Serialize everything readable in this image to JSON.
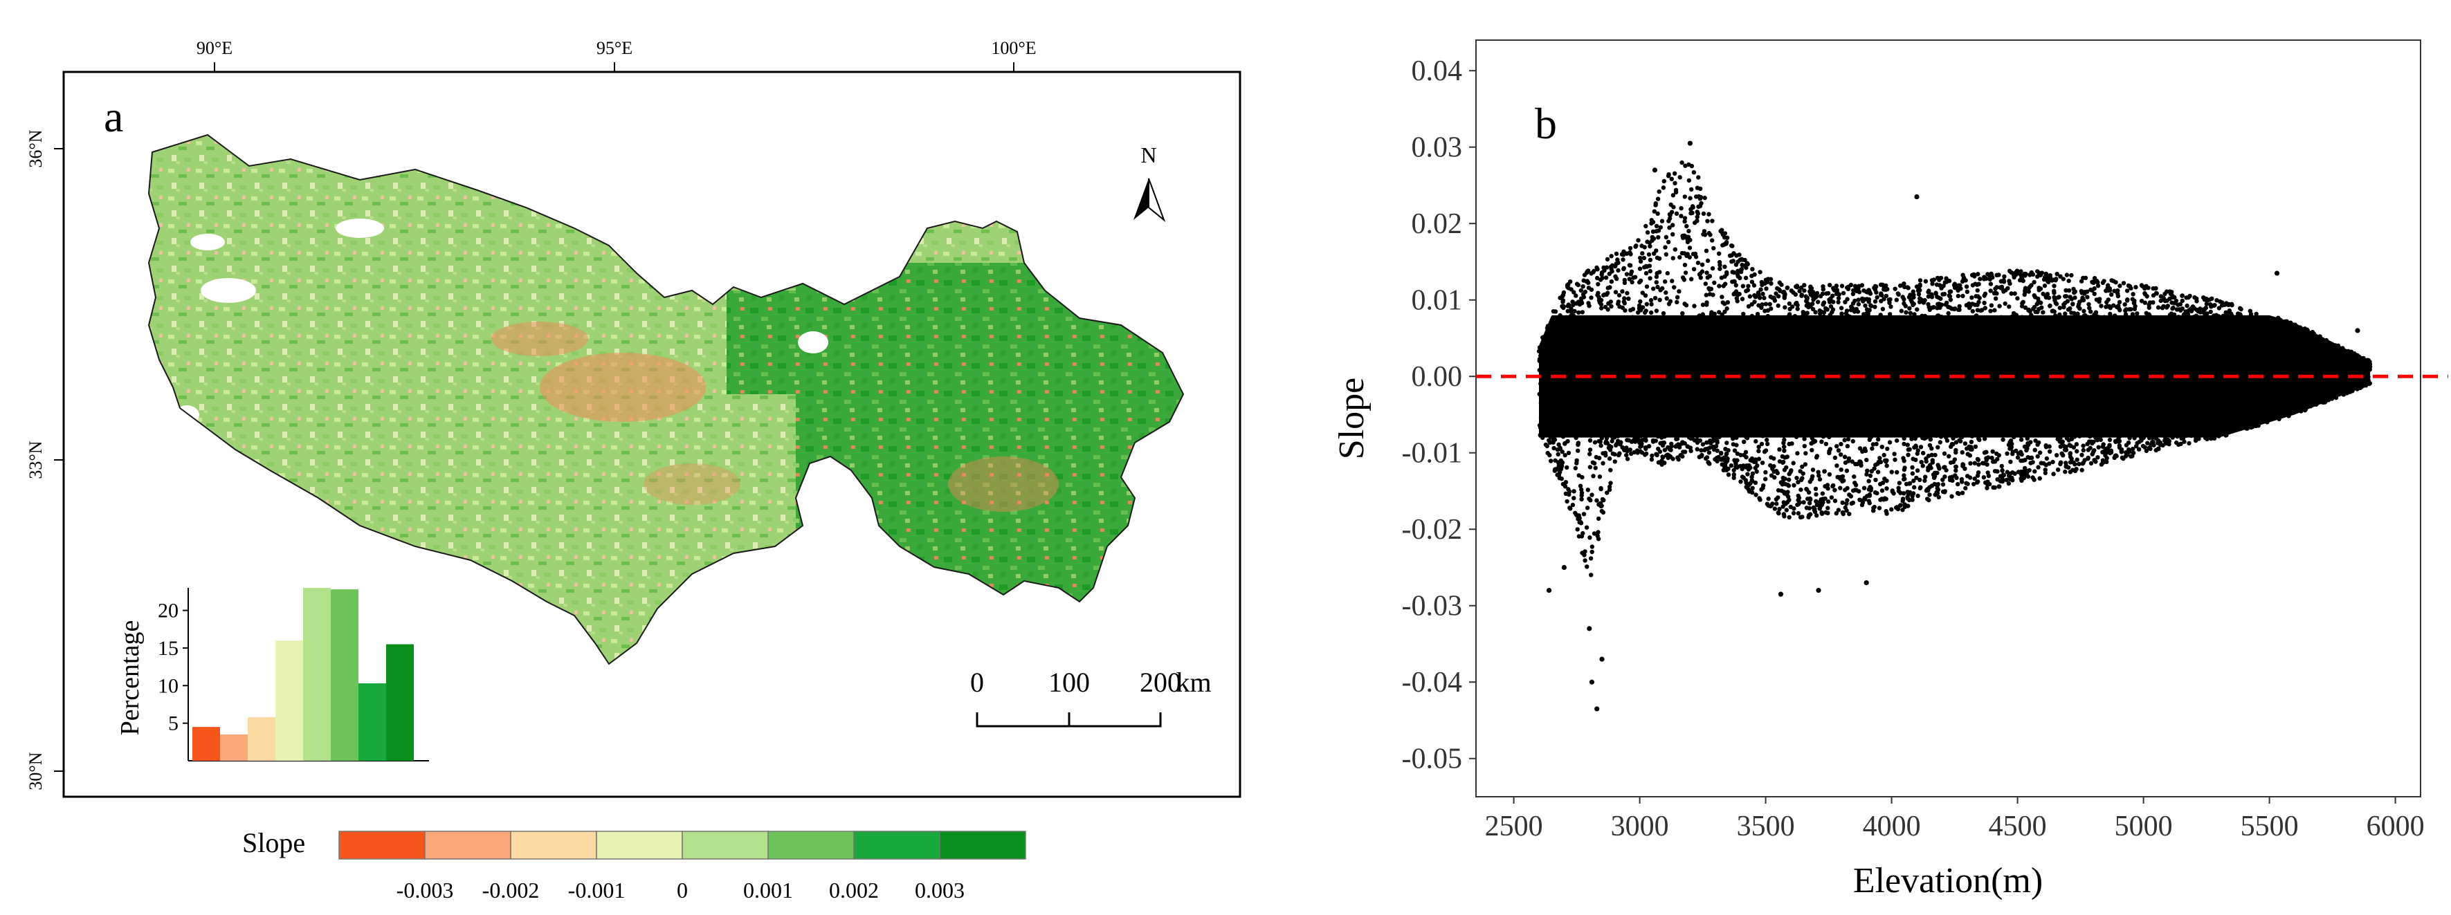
{
  "panel_a": {
    "letter": "a",
    "lon_labels": [
      "90°E",
      "95°E",
      "100°E"
    ],
    "lat_labels": [
      "36°N",
      "33°N",
      "30°N"
    ],
    "north_label": "N",
    "scale_labels": [
      "0",
      "100",
      "200"
    ],
    "scale_unit": "km",
    "inset_ylabel": "Percentage",
    "inset_yticks": [
      "5",
      "10",
      "15",
      "20"
    ],
    "legend_title": "Slope",
    "legend_ticks": [
      "-0.003",
      "-0.002",
      "-0.001",
      "0",
      "0.001",
      "0.002",
      "0.003"
    ],
    "legend_colors": [
      "#f4561b",
      "#f9a87a",
      "#fbd9a0",
      "#e6f3b3",
      "#b3e08a",
      "#6dc45a",
      "#19a83c",
      "#0a8f1c"
    ]
  },
  "panel_b": {
    "letter": "b",
    "xlabel": "Elevation(m)",
    "ylabel": "Slope",
    "xticks": [
      "2500",
      "3000",
      "3500",
      "4000",
      "4500",
      "5000",
      "5500",
      "6000"
    ],
    "yticks": [
      "0.04",
      "0.03",
      "0.02",
      "0.01",
      "0.00",
      "-0.01",
      "-0.02",
      "-0.03",
      "-0.04",
      "-0.05"
    ]
  },
  "chart_data": [
    {
      "type": "bar",
      "panel": "a-inset",
      "ylabel": "Percentage",
      "ylim": [
        0,
        23
      ],
      "colors": [
        "#f4561b",
        "#f9a87a",
        "#fbd9a0",
        "#e6f3b3",
        "#b3e08a",
        "#6dc45a",
        "#19a83c",
        "#0a8f1c"
      ],
      "values": [
        4.5,
        3.5,
        5.8,
        16,
        23,
        22.8,
        10.3,
        15.5
      ]
    },
    {
      "type": "scatter",
      "panel": "b",
      "xlabel": "Elevation(m)",
      "ylabel": "Slope",
      "xlim": [
        2350,
        6100
      ],
      "ylim": [
        -0.055,
        0.044
      ],
      "reference_line": {
        "y": 0.0,
        "style": "dashed",
        "color": "#ff0000"
      },
      "envelope": [
        {
          "x": 2600,
          "upper": 0.004,
          "lower": -0.008
        },
        {
          "x": 2700,
          "upper": 0.012,
          "lower": -0.015
        },
        {
          "x": 2800,
          "upper": 0.014,
          "lower": -0.027
        },
        {
          "x": 2900,
          "upper": 0.016,
          "lower": -0.012
        },
        {
          "x": 3000,
          "upper": 0.018,
          "lower": -0.01
        },
        {
          "x": 3100,
          "upper": 0.026,
          "lower": -0.012
        },
        {
          "x": 3200,
          "upper": 0.029,
          "lower": -0.01
        },
        {
          "x": 3300,
          "upper": 0.021,
          "lower": -0.012
        },
        {
          "x": 3400,
          "upper": 0.016,
          "lower": -0.014
        },
        {
          "x": 3500,
          "upper": 0.013,
          "lower": -0.017
        },
        {
          "x": 3600,
          "upper": 0.012,
          "lower": -0.019
        },
        {
          "x": 3800,
          "upper": 0.012,
          "lower": -0.018
        },
        {
          "x": 4000,
          "upper": 0.012,
          "lower": -0.018
        },
        {
          "x": 4200,
          "upper": 0.013,
          "lower": -0.016
        },
        {
          "x": 4500,
          "upper": 0.014,
          "lower": -0.014
        },
        {
          "x": 4800,
          "upper": 0.013,
          "lower": -0.012
        },
        {
          "x": 5000,
          "upper": 0.012,
          "lower": -0.01
        },
        {
          "x": 5300,
          "upper": 0.01,
          "lower": -0.008
        },
        {
          "x": 5600,
          "upper": 0.007,
          "lower": -0.005
        },
        {
          "x": 5900,
          "upper": 0.002,
          "lower": -0.001
        }
      ],
      "outliers": [
        {
          "x": 2830,
          "y": -0.0435
        },
        {
          "x": 2810,
          "y": -0.04
        },
        {
          "x": 2850,
          "y": -0.037
        },
        {
          "x": 2800,
          "y": -0.033
        },
        {
          "x": 2640,
          "y": -0.028
        },
        {
          "x": 2700,
          "y": -0.025
        },
        {
          "x": 3200,
          "y": 0.0305
        },
        {
          "x": 3060,
          "y": 0.027
        },
        {
          "x": 4100,
          "y": 0.0235
        },
        {
          "x": 3560,
          "y": -0.0285
        },
        {
          "x": 3710,
          "y": -0.028
        },
        {
          "x": 3900,
          "y": -0.027
        },
        {
          "x": 5530,
          "y": 0.0135
        },
        {
          "x": 5850,
          "y": 0.006
        }
      ]
    }
  ]
}
